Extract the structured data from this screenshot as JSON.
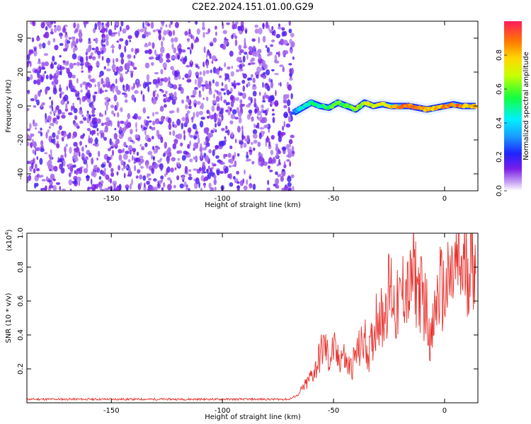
{
  "title": "C2E2.2024.151.01.00.G29",
  "chart_data": [
    {
      "type": "heatmap",
      "xlabel": "Height of straight line (km)",
      "ylabel": "Frequency (Hz)",
      "xlim": [
        -188,
        15
      ],
      "ylim": [
        -50,
        50
      ],
      "xticks": [
        -150,
        -100,
        -50,
        0
      ],
      "yticks": [
        -40,
        -20,
        0,
        20,
        40
      ],
      "noise_region_x": [
        -188,
        -68
      ],
      "signal_region_x": [
        -68,
        14
      ],
      "signal_trace": {
        "x": [
          -68,
          -64,
          -60,
          -56,
          -52,
          -48,
          -44,
          -40,
          -36,
          -32,
          -28,
          -24,
          -20,
          -16,
          -12,
          -8,
          -4,
          0,
          4,
          8,
          12,
          14
        ],
        "freq": [
          -4,
          -1,
          2,
          0,
          -1,
          2,
          0,
          -2,
          2,
          0,
          1,
          0,
          0,
          0,
          -1,
          -2,
          -1,
          0,
          1,
          0,
          0,
          0
        ],
        "amplitude": [
          0.3,
          0.45,
          0.5,
          0.5,
          0.55,
          0.55,
          0.6,
          0.6,
          0.7,
          0.7,
          0.75,
          0.85,
          0.9,
          0.9,
          0.85,
          0.75,
          0.8,
          0.85,
          0.9,
          0.85,
          0.8,
          0.8
        ]
      },
      "colorbar": {
        "label": "Normalized spectral amplitude",
        "range": [
          0,
          1
        ],
        "ticks": [
          "0.0",
          "0.2",
          "0.4",
          "0.6",
          "0.8"
        ]
      }
    },
    {
      "type": "line",
      "xlabel": "Height of straight line (km)",
      "ylabel": "SNR (10 * v/v)",
      "scale_note": "(x10",
      "scale_exp": "4",
      "xlim": [
        -188,
        15
      ],
      "ylim": [
        0,
        1.0
      ],
      "xticks": [
        -150,
        -100,
        -50,
        0
      ],
      "yticks": [
        0.2,
        0.4,
        0.6,
        0.8,
        1.0
      ],
      "ytick_labels": [
        "0.2",
        "0.4",
        "0.6",
        "0.8",
        "1.0"
      ],
      "series": [
        {
          "name": "SNR",
          "color": "#e8312c",
          "x": [
            -188,
            -70,
            -66,
            -62,
            -58,
            -56,
            -54,
            -52,
            -50,
            -48,
            -46,
            -44,
            -42,
            -40,
            -38,
            -36,
            -34,
            -32,
            -30,
            -28,
            -26,
            -24,
            -22,
            -20,
            -18,
            -16,
            -14,
            -12,
            -10,
            -8,
            -6,
            -4,
            -2,
            0,
            2,
            4,
            6,
            8,
            10,
            12,
            14
          ],
          "y": [
            0.015,
            0.015,
            0.04,
            0.1,
            0.18,
            0.25,
            0.3,
            0.22,
            0.28,
            0.22,
            0.26,
            0.2,
            0.18,
            0.25,
            0.28,
            0.33,
            0.25,
            0.35,
            0.5,
            0.42,
            0.55,
            0.6,
            0.48,
            0.52,
            0.62,
            0.55,
            0.68,
            0.6,
            0.55,
            0.48,
            0.3,
            0.5,
            0.6,
            0.55,
            0.62,
            0.66,
            0.72,
            0.68,
            0.72,
            0.74,
            0.76
          ]
        }
      ]
    }
  ]
}
